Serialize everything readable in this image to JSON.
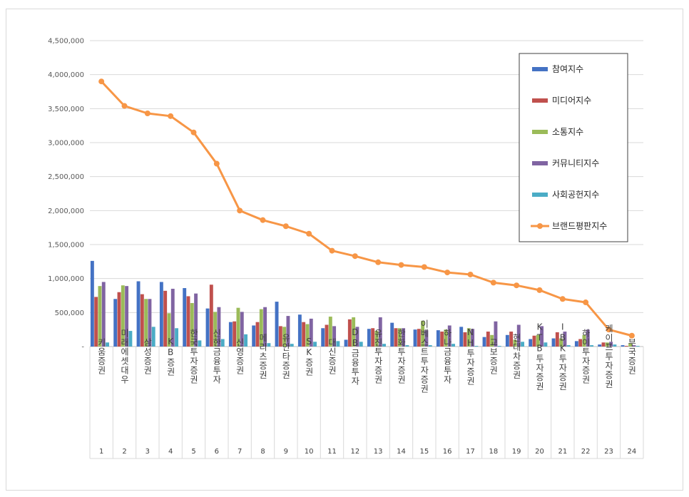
{
  "chart_data": {
    "type": "bar",
    "title": "",
    "xlabel": "",
    "ylabel": "",
    "ylim": [
      0,
      4500000
    ],
    "y_ticks": [
      "-",
      "500,000",
      "1,000,000",
      "1,500,000",
      "2,000,000",
      "2,500,000",
      "3,000,000",
      "3,500,000",
      "4,000,000",
      "4,500,000"
    ],
    "grid": true,
    "legend_position": "top-right",
    "categories": [
      "키움증권",
      "미래에셋대우",
      "삼성증권",
      "KB증권",
      "한국투자증권",
      "신한금융투자",
      "신영증권",
      "메리츠증권",
      "유안타증권",
      "SK증권",
      "대신증권",
      "DB금융투자",
      "유진투자증권",
      "한화투자증권",
      "이베스트투자증권",
      "하나금융투자",
      "NH투자증권",
      "교보증권",
      "현대차증권",
      "KTB투자증권",
      "IBK투자증권",
      "하이투자증권",
      "케이프투자증권",
      "부국증권"
    ],
    "ranks": [
      "1",
      "2",
      "3",
      "4",
      "5",
      "6",
      "7",
      "8",
      "9",
      "10",
      "11",
      "12",
      "13",
      "14",
      "15",
      "16",
      "17",
      "18",
      "19",
      "20",
      "21",
      "22",
      "23",
      "24"
    ],
    "series": [
      {
        "name": "참여지수",
        "type": "bar",
        "color": "#4472c4",
        "values": [
          1260000,
          700000,
          960000,
          950000,
          860000,
          560000,
          360000,
          310000,
          660000,
          470000,
          270000,
          100000,
          260000,
          350000,
          250000,
          240000,
          290000,
          140000,
          170000,
          110000,
          120000,
          80000,
          30000,
          20000
        ]
      },
      {
        "name": "미디어지수",
        "type": "bar",
        "color": "#c0504d",
        "values": [
          730000,
          800000,
          770000,
          820000,
          740000,
          910000,
          370000,
          360000,
          300000,
          360000,
          320000,
          400000,
          270000,
          270000,
          260000,
          220000,
          210000,
          220000,
          220000,
          160000,
          210000,
          110000,
          60000,
          10000
        ]
      },
      {
        "name": "소통지수",
        "type": "bar",
        "color": "#9bbb59",
        "values": [
          890000,
          900000,
          700000,
          490000,
          640000,
          510000,
          570000,
          550000,
          290000,
          330000,
          440000,
          430000,
          230000,
          270000,
          380000,
          250000,
          270000,
          170000,
          100000,
          170000,
          120000,
          170000,
          60000,
          50000
        ]
      },
      {
        "name": "커뮤니티지수",
        "type": "bar",
        "color": "#8064a2",
        "values": [
          950000,
          890000,
          700000,
          850000,
          780000,
          580000,
          510000,
          580000,
          450000,
          410000,
          300000,
          290000,
          430000,
          270000,
          240000,
          310000,
          260000,
          370000,
          320000,
          300000,
          220000,
          250000,
          70000,
          20000
        ]
      },
      {
        "name": "사회공헌지수",
        "type": "bar",
        "color": "#4bacc6",
        "values": [
          60000,
          230000,
          290000,
          270000,
          90000,
          110000,
          180000,
          50000,
          40000,
          70000,
          80000,
          70000,
          40000,
          20000,
          20000,
          40000,
          10000,
          10000,
          70000,
          60000,
          20000,
          20000,
          30000,
          10000
        ]
      },
      {
        "name": "브랜드평판지수",
        "type": "line",
        "color": "#f79646",
        "values": [
          3900000,
          3540000,
          3430000,
          3390000,
          3150000,
          2690000,
          2000000,
          1860000,
          1770000,
          1660000,
          1410000,
          1330000,
          1240000,
          1200000,
          1170000,
          1090000,
          1060000,
          940000,
          900000,
          830000,
          700000,
          650000,
          250000,
          160000
        ]
      }
    ]
  }
}
